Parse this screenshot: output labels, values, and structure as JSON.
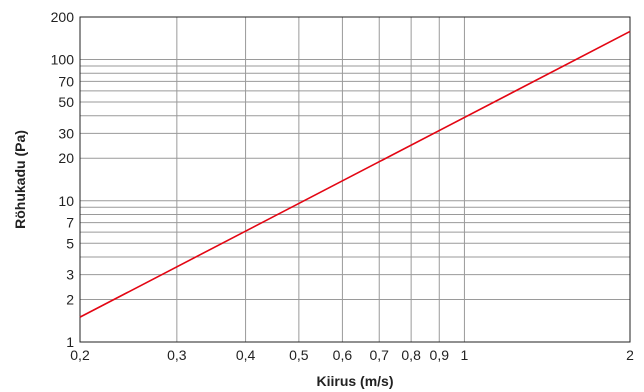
{
  "chart_data": {
    "type": "line",
    "xscale": "log",
    "yscale": "log",
    "xlabel": "Kiirus (m/s)",
    "ylabel": "Röhukadu (Pa)",
    "xlim": [
      0.2,
      2
    ],
    "ylim": [
      1,
      200
    ],
    "grid": true,
    "x_ticks": [
      0.2,
      0.3,
      0.4,
      0.5,
      0.6,
      0.7,
      0.8,
      0.9,
      1,
      2
    ],
    "x_tick_labels": [
      "0,2",
      "0,3",
      "0,4",
      "0,5",
      "0,6",
      "0,7",
      "0,8",
      "0,9",
      "1",
      "2"
    ],
    "y_ticks": [
      1,
      2,
      3,
      5,
      7,
      10,
      20,
      30,
      50,
      70,
      100,
      200
    ],
    "y_tick_labels": [
      "1",
      "2",
      "3",
      "5",
      "7",
      "10",
      "20",
      "30",
      "50",
      "70",
      "100",
      "200"
    ],
    "y_gridlines": [
      1,
      2,
      3,
      4,
      5,
      6,
      7,
      8,
      9,
      10,
      20,
      30,
      40,
      50,
      60,
      70,
      80,
      90,
      100,
      200
    ],
    "series": [
      {
        "color": "#e30613",
        "x": [
          0.2,
          2
        ],
        "y": [
          1.5,
          158
        ]
      }
    ]
  }
}
